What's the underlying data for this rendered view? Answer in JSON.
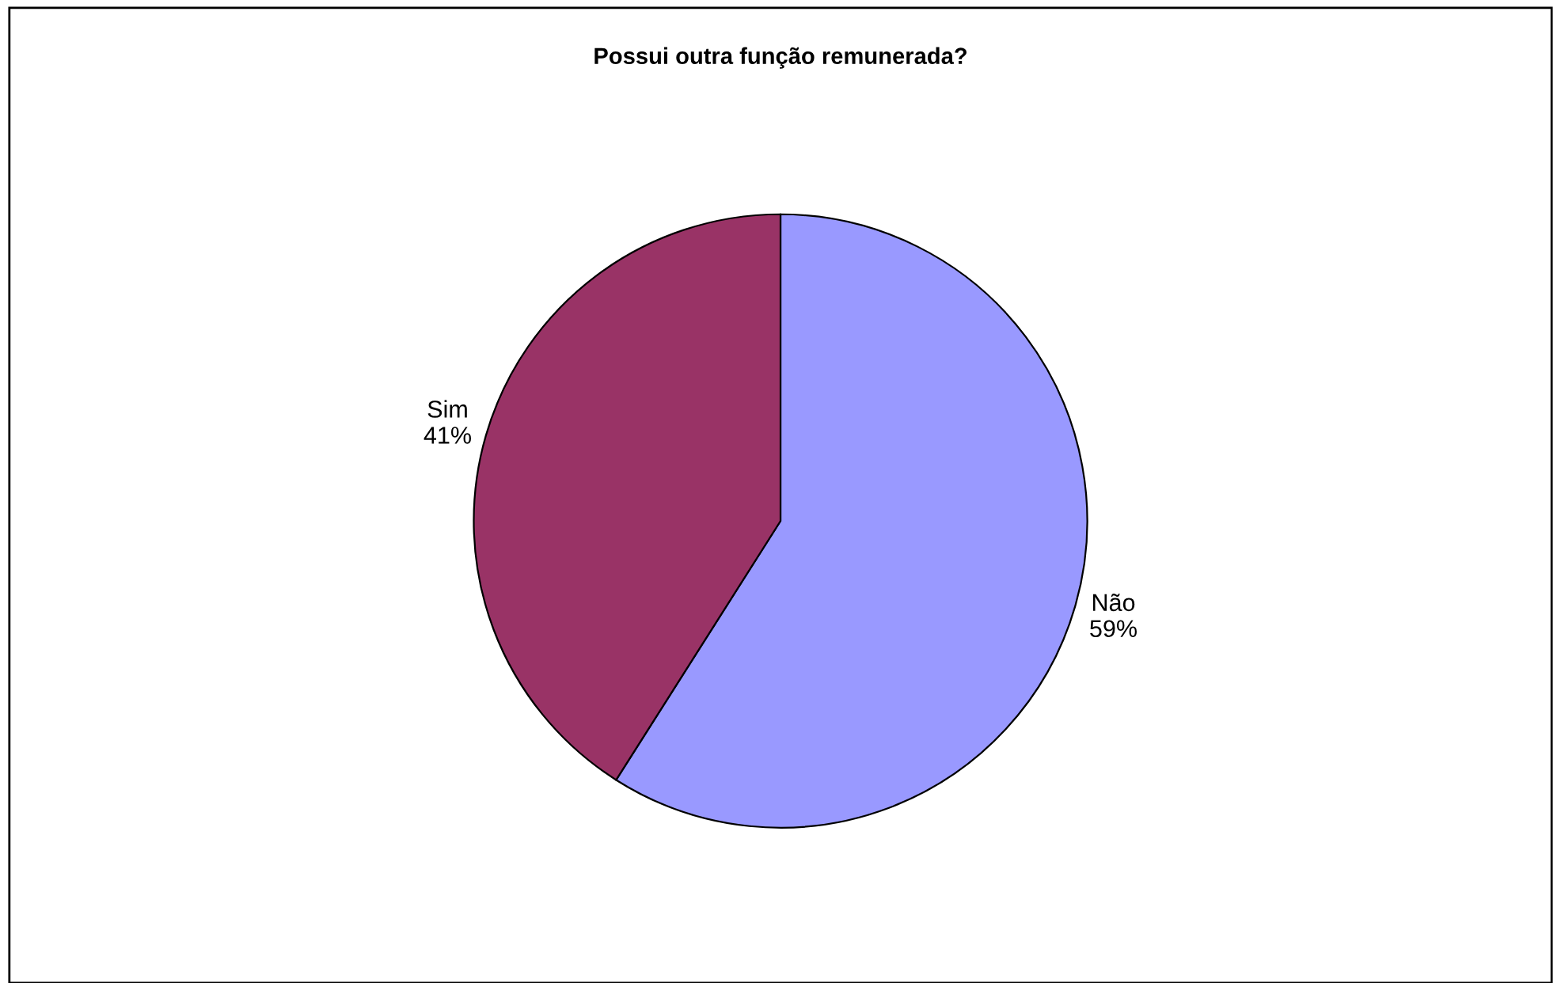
{
  "chart_data": {
    "type": "pie",
    "title": "Possui outra função remunerada?",
    "categories": [
      "Não",
      "Sim"
    ],
    "values": [
      59,
      41
    ],
    "colors": [
      "#9999ff",
      "#993366"
    ],
    "value_labels": [
      "59%",
      "41%"
    ],
    "data_labels": true,
    "legend": false
  }
}
